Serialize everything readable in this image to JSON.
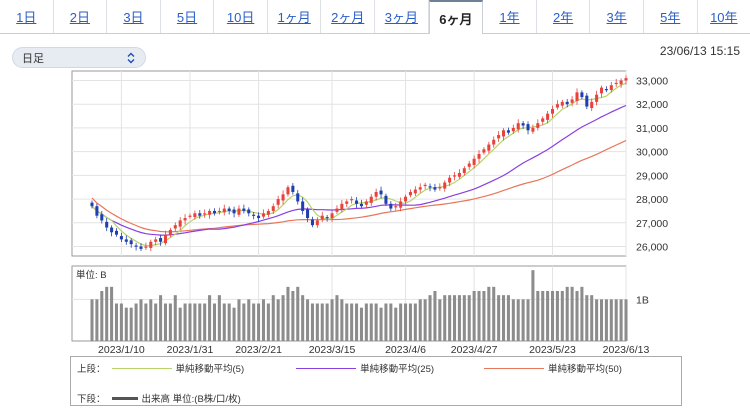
{
  "tabs": [
    {
      "label": "1日",
      "active": false
    },
    {
      "label": "2日",
      "active": false
    },
    {
      "label": "3日",
      "active": false
    },
    {
      "label": "5日",
      "active": false
    },
    {
      "label": "10日",
      "active": false
    },
    {
      "label": "1ヶ月",
      "active": false
    },
    {
      "label": "2ヶ月",
      "active": false
    },
    {
      "label": "3ヶ月",
      "active": false
    },
    {
      "label": "6ヶ月",
      "active": true
    },
    {
      "label": "1年",
      "active": false
    },
    {
      "label": "2年",
      "active": false
    },
    {
      "label": "3年",
      "active": false
    },
    {
      "label": "5年",
      "active": false
    },
    {
      "label": "10年",
      "active": false
    }
  ],
  "select": {
    "value": "日足"
  },
  "timestamp": "23/06/13 15:15",
  "volume_panel": {
    "unit_label": "単位: B",
    "tick_label": "1B"
  },
  "legend": {
    "upper_label": "上段：",
    "lower_label": "下段：",
    "ma5": "単純移動平均(5)",
    "ma25": "単純移動平均(25)",
    "ma50": "単純移動平均(50)",
    "volume": "出来高 単位:(B株/口/枚)"
  },
  "colors": {
    "up": "#e8423c",
    "down": "#1f3fb0",
    "ma5": "#b7d36a",
    "ma25": "#8a3fe0",
    "ma50": "#e8765a",
    "volume": "#8c8c8c"
  },
  "chart_data": {
    "type": "candlestick",
    "price_axis": {
      "ticks": [
        26000,
        27000,
        28000,
        29000,
        30000,
        31000,
        32000,
        33000
      ],
      "range": [
        25600,
        33400
      ]
    },
    "x_labels": [
      "2023/1/10",
      "2023/1/31",
      "2023/2/21",
      "2023/3/15",
      "2023/4/6",
      "2023/4/27",
      "2023/5/23",
      "2023/6/13"
    ],
    "x_label_index": [
      6,
      20,
      34,
      49,
      64,
      78,
      94,
      109
    ],
    "volume_scale": {
      "tick": 1,
      "max": 1.8
    },
    "close": [
      27700,
      27300,
      27100,
      26800,
      26600,
      26500,
      26300,
      26200,
      26100,
      26000,
      25900,
      26000,
      26200,
      26300,
      26200,
      26500,
      26700,
      26900,
      27100,
      27200,
      27300,
      27400,
      27300,
      27400,
      27500,
      27400,
      27500,
      27600,
      27500,
      27400,
      27600,
      27500,
      27400,
      27300,
      27200,
      27400,
      27500,
      27700,
      28000,
      28200,
      28500,
      28300,
      27900,
      27500,
      27200,
      26900,
      27100,
      27300,
      27200,
      27400,
      27600,
      27800,
      27900,
      28000,
      27800,
      27700,
      27900,
      28100,
      28300,
      28200,
      27800,
      27600,
      27700,
      27900,
      28100,
      28300,
      28400,
      28500,
      28600,
      28500,
      28400,
      28500,
      28700,
      28900,
      29000,
      29100,
      29300,
      29500,
      29700,
      29900,
      30100,
      30300,
      30500,
      30700,
      30900,
      30800,
      31000,
      31200,
      31100,
      30900,
      31000,
      31200,
      31400,
      31600,
      31800,
      32000,
      32100,
      32000,
      32200,
      32500,
      32300,
      31900,
      32100,
      32400,
      32700,
      32600,
      32800,
      32900,
      33000,
      33100
    ],
    "volume": [
      1.0,
      1.0,
      1.2,
      1.3,
      1.3,
      0.9,
      0.9,
      0.8,
      0.8,
      0.9,
      1.0,
      0.9,
      1.0,
      0.9,
      1.1,
      0.9,
      0.9,
      1.1,
      0.8,
      0.9,
      0.9,
      0.9,
      0.9,
      0.9,
      1.1,
      0.9,
      1.1,
      0.9,
      0.9,
      0.8,
      1.0,
      0.9,
      1.0,
      0.9,
      0.9,
      1.0,
      0.9,
      1.1,
      1.0,
      1.1,
      1.3,
      1.2,
      1.3,
      1.1,
      1.0,
      0.9,
      0.9,
      0.9,
      0.9,
      1.0,
      1.1,
      1.0,
      0.9,
      0.9,
      0.9,
      0.8,
      0.9,
      0.9,
      0.9,
      0.8,
      0.9,
      0.9,
      0.8,
      0.9,
      0.9,
      0.9,
      0.9,
      1.0,
      1.0,
      1.1,
      1.2,
      1.0,
      1.1,
      1.1,
      1.1,
      1.1,
      1.1,
      1.1,
      1.2,
      1.2,
      1.2,
      1.3,
      1.3,
      1.1,
      1.1,
      1.1,
      1.0,
      1.0,
      1.0,
      1.0,
      1.7,
      1.2,
      1.2,
      1.2,
      1.2,
      1.2,
      1.2,
      1.3,
      1.3,
      1.2,
      1.3,
      1.1,
      1.1,
      1.0,
      1.0,
      1.0,
      1.0,
      1.0,
      1.0,
      1.0
    ]
  }
}
